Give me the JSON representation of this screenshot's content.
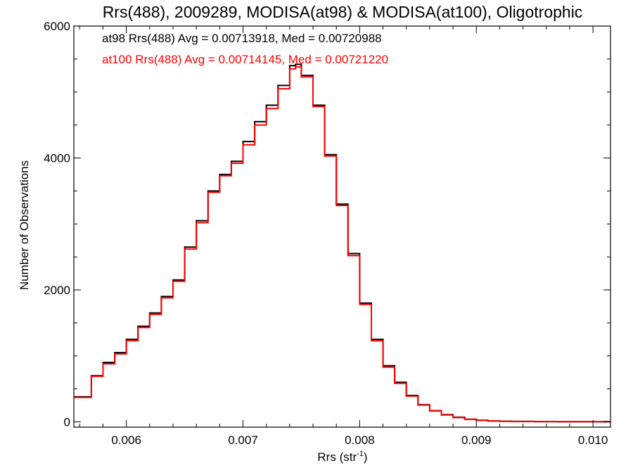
{
  "chart_data": {
    "type": "line",
    "title": "Rrs(488), 2009289, MODISA(at98) & MODISA(at100), Oligotrophic",
    "xlabel": "Rrs (str",
    "xlabel_sup": "-1",
    "xlabel_close": ")",
    "ylabel": "Number of Observations",
    "xlim": [
      0.00555,
      0.01015
    ],
    "ylim": [
      -80,
      6000
    ],
    "xticks": [
      0.006,
      0.007,
      0.008,
      0.009,
      0.01
    ],
    "xtick_labels": [
      "0.006",
      "0.007",
      "0.008",
      "0.009",
      "0.010"
    ],
    "yticks": [
      0,
      2000,
      4000,
      6000
    ],
    "ytick_labels": [
      "0",
      "2000",
      "4000",
      "6000"
    ],
    "grid": false,
    "step": true,
    "annotations": [
      {
        "text": "at98 Rrs(488) Avg = 0.00713918, Med = 0.00720988",
        "color": "#000000"
      },
      {
        "text": "at100 Rrs(488) Avg = 0.00714145, Med = 0.00721220",
        "color": "#ff0000"
      }
    ],
    "series": [
      {
        "color": "#000000",
        "x": [
          0.00555,
          0.0057,
          0.0058,
          0.0059,
          0.006,
          0.0061,
          0.0062,
          0.0063,
          0.0064,
          0.0065,
          0.0066,
          0.0067,
          0.0068,
          0.0069,
          0.007,
          0.0071,
          0.0072,
          0.0073,
          0.0074,
          0.00745,
          0.0075,
          0.0076,
          0.0077,
          0.0078,
          0.0079,
          0.008,
          0.0081,
          0.0082,
          0.0083,
          0.0084,
          0.0085,
          0.0086,
          0.0087,
          0.0088,
          0.0089,
          0.009,
          0.0091,
          0.0092,
          0.0093,
          0.0095,
          0.0097,
          0.0099,
          0.01015
        ],
        "y": [
          380,
          700,
          900,
          1050,
          1250,
          1450,
          1650,
          1900,
          2150,
          2650,
          3050,
          3500,
          3750,
          3950,
          4250,
          4550,
          4800,
          5100,
          5400,
          5420,
          5250,
          4800,
          4050,
          3300,
          2550,
          1800,
          1250,
          850,
          600,
          400,
          260,
          170,
          110,
          70,
          40,
          25,
          15,
          10,
          6,
          4,
          3,
          2,
          1
        ]
      },
      {
        "color": "#ff0000",
        "x": [
          0.00555,
          0.0057,
          0.0058,
          0.0059,
          0.006,
          0.0061,
          0.0062,
          0.0063,
          0.0064,
          0.0065,
          0.0066,
          0.0067,
          0.0068,
          0.0069,
          0.007,
          0.0071,
          0.0072,
          0.0073,
          0.0074,
          0.00745,
          0.0075,
          0.0076,
          0.0077,
          0.0078,
          0.0079,
          0.008,
          0.0081,
          0.0082,
          0.0083,
          0.0084,
          0.0085,
          0.0086,
          0.0087,
          0.0088,
          0.0089,
          0.009,
          0.0091,
          0.0092,
          0.0093,
          0.0095,
          0.0097,
          0.0099,
          0.01015
        ],
        "y": [
          370,
          690,
          880,
          1030,
          1230,
          1430,
          1630,
          1880,
          2130,
          2620,
          3020,
          3480,
          3730,
          3920,
          4200,
          4500,
          4750,
          5050,
          5350,
          5380,
          5230,
          4780,
          4030,
          3280,
          2520,
          1780,
          1230,
          830,
          585,
          390,
          255,
          165,
          105,
          65,
          38,
          24,
          14,
          9,
          6,
          4,
          3,
          2,
          1
        ]
      }
    ]
  }
}
